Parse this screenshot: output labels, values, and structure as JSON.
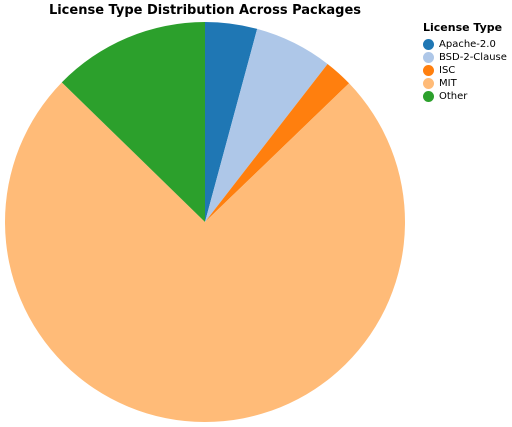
{
  "chart_data": {
    "type": "pie",
    "title": "License Type Distribution Across Packages",
    "legend_title": "License Type",
    "legend_position": "top-right",
    "categories": [
      "Apache-2.0",
      "BSD-2-Clause",
      "ISC",
      "MIT",
      "Other"
    ],
    "values": [
      4.2,
      6.3,
      2.3,
      74.5,
      12.7
    ],
    "colors": [
      "#1f77b4",
      "#aec7e8",
      "#ff7f0e",
      "#ffbb78",
      "#2ca02c"
    ]
  }
}
